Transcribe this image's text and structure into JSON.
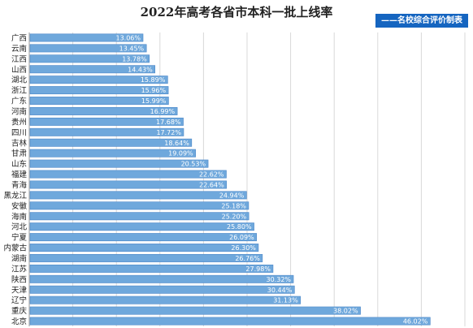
{
  "chart_data": {
    "type": "bar",
    "orientation": "horizontal",
    "title": "2022年高考各省市本科一批上线率",
    "source_label": "——名校综合评价制表",
    "categories": [
      "广西",
      "云南",
      "江西",
      "山西",
      "湖北",
      "浙江",
      "广东",
      "河南",
      "贵州",
      "四川",
      "吉林",
      "甘肃",
      "山东",
      "福建",
      "青海",
      "黑龙江",
      "安徽",
      "海南",
      "河北",
      "宁夏",
      "内蒙古",
      "湖南",
      "江苏",
      "陕西",
      "天津",
      "辽宁",
      "重庆",
      "北京"
    ],
    "values": [
      13.06,
      13.45,
      13.78,
      14.43,
      15.89,
      15.96,
      15.99,
      16.99,
      17.68,
      17.72,
      18.64,
      19.09,
      20.53,
      22.62,
      22.64,
      24.94,
      25.18,
      25.2,
      25.8,
      26.09,
      26.3,
      26.76,
      27.98,
      30.32,
      30.44,
      31.13,
      38.02,
      46.02
    ],
    "value_labels": [
      "13.06%",
      "13.45%",
      "13.78%",
      "14.43%",
      "15.89%",
      "15.96%",
      "15.99%",
      "16.99%",
      "17.68%",
      "17.72%",
      "18.64%",
      "19.09%",
      "20.53%",
      "22.62%",
      "22.64%",
      "24.94%",
      "25.18%",
      "25.20%",
      "25.80%",
      "26.09%",
      "26.30%",
      "26.76%",
      "27.98%",
      "30.32%",
      "30.44%",
      "31.13%",
      "38.02%",
      "46.02%"
    ],
    "xlim": [
      0,
      50
    ],
    "grid": true,
    "legend": "none",
    "bar_color": "#6fa8dc",
    "bar_edge_color": "#4a86c8"
  }
}
